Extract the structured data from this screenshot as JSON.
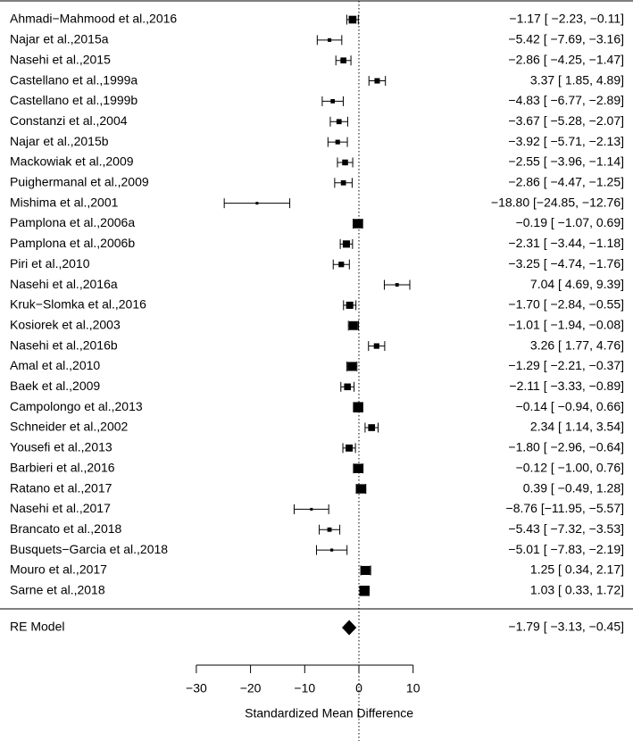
{
  "chart_data": {
    "type": "forest",
    "xlabel": "Standardized Mean Difference",
    "xlim": [
      -30,
      10
    ],
    "xticks": [
      -30,
      -20,
      -10,
      0,
      10
    ],
    "xtick_labels": [
      "−30",
      "−20",
      "−10",
      "0",
      "10"
    ],
    "reference_line": 0,
    "studies": [
      {
        "name": "Ahmadi−Mahmood et al.,2016",
        "est": -1.17,
        "lo": -2.23,
        "hi": -0.11,
        "text": "−1.17 [ −2.23,  −0.11]"
      },
      {
        "name": "Najar et al.,2015a",
        "est": -5.42,
        "lo": -7.69,
        "hi": -3.16,
        "text": "−5.42 [ −7.69,  −3.16]"
      },
      {
        "name": "Nasehi et al.,2015",
        "est": -2.86,
        "lo": -4.25,
        "hi": -1.47,
        "text": "−2.86 [ −4.25,  −1.47]"
      },
      {
        "name": "Castellano et al.,1999a",
        "est": 3.37,
        "lo": 1.85,
        "hi": 4.89,
        "text": "3.37 [  1.85,   4.89]"
      },
      {
        "name": "Castellano et al.,1999b",
        "est": -4.83,
        "lo": -6.77,
        "hi": -2.89,
        "text": "−4.83 [ −6.77,  −2.89]"
      },
      {
        "name": "Constanzi et al.,2004",
        "est": -3.67,
        "lo": -5.28,
        "hi": -2.07,
        "text": "−3.67 [ −5.28,  −2.07]"
      },
      {
        "name": "Najar et al.,2015b",
        "est": -3.92,
        "lo": -5.71,
        "hi": -2.13,
        "text": "−3.92 [ −5.71,  −2.13]"
      },
      {
        "name": "Mackowiak et al.,2009",
        "est": -2.55,
        "lo": -3.96,
        "hi": -1.14,
        "text": "−2.55 [ −3.96,  −1.14]"
      },
      {
        "name": "Puighermanal et al.,2009",
        "est": -2.86,
        "lo": -4.47,
        "hi": -1.25,
        "text": "−2.86 [ −4.47,  −1.25]"
      },
      {
        "name": "Mishima et al.,2001",
        "est": -18.8,
        "lo": -24.85,
        "hi": -12.76,
        "text": "−18.80 [−24.85, −12.76]"
      },
      {
        "name": "Pamplona et al.,2006a",
        "est": -0.19,
        "lo": -1.07,
        "hi": 0.69,
        "text": "−0.19 [ −1.07,   0.69]"
      },
      {
        "name": "Pamplona et al.,2006b",
        "est": -2.31,
        "lo": -3.44,
        "hi": -1.18,
        "text": "−2.31 [ −3.44,  −1.18]"
      },
      {
        "name": "Piri et al.,2010",
        "est": -3.25,
        "lo": -4.74,
        "hi": -1.76,
        "text": "−3.25 [ −4.74,  −1.76]"
      },
      {
        "name": "Nasehi et al.,2016a",
        "est": 7.04,
        "lo": 4.69,
        "hi": 9.39,
        "text": "7.04 [  4.69,   9.39]"
      },
      {
        "name": "Kruk−Slomka et al.,2016",
        "est": -1.7,
        "lo": -2.84,
        "hi": -0.55,
        "text": "−1.70 [ −2.84,  −0.55]"
      },
      {
        "name": "Kosiorek et al.,2003",
        "est": -1.01,
        "lo": -1.94,
        "hi": -0.08,
        "text": "−1.01 [ −1.94,  −0.08]"
      },
      {
        "name": "Nasehi et al.,2016b",
        "est": 3.26,
        "lo": 1.77,
        "hi": 4.76,
        "text": "3.26 [  1.77,   4.76]"
      },
      {
        "name": "Amal et al.,2010",
        "est": -1.29,
        "lo": -2.21,
        "hi": -0.37,
        "text": "−1.29 [ −2.21,  −0.37]"
      },
      {
        "name": "Baek et al.,2009",
        "est": -2.11,
        "lo": -3.33,
        "hi": -0.89,
        "text": "−2.11 [ −3.33,  −0.89]"
      },
      {
        "name": "Campolongo et al.,2013",
        "est": -0.14,
        "lo": -0.94,
        "hi": 0.66,
        "text": "−0.14 [ −0.94,   0.66]"
      },
      {
        "name": "Schneider et al.,2002",
        "est": 2.34,
        "lo": 1.14,
        "hi": 3.54,
        "text": "2.34 [  1.14,   3.54]"
      },
      {
        "name": "Yousefi et al.,2013",
        "est": -1.8,
        "lo": -2.96,
        "hi": -0.64,
        "text": "−1.80 [ −2.96,  −0.64]"
      },
      {
        "name": "Barbieri et al.,2016",
        "est": -0.12,
        "lo": -1.0,
        "hi": 0.76,
        "text": "−0.12 [ −1.00,   0.76]"
      },
      {
        "name": "Ratano et al.,2017",
        "est": 0.39,
        "lo": -0.49,
        "hi": 1.28,
        "text": "0.39 [ −0.49,   1.28]"
      },
      {
        "name": "Nasehi et al.,2017",
        "est": -8.76,
        "lo": -11.95,
        "hi": -5.57,
        "text": "−8.76 [−11.95,  −5.57]"
      },
      {
        "name": "Brancato et al.,2018",
        "est": -5.43,
        "lo": -7.32,
        "hi": -3.53,
        "text": "−5.43 [ −7.32,  −3.53]"
      },
      {
        "name": "Busquets−Garcia et al.,2018",
        "est": -5.01,
        "lo": -7.83,
        "hi": -2.19,
        "text": "−5.01 [ −7.83,  −2.19]"
      },
      {
        "name": "Mouro et al.,2017",
        "est": 1.25,
        "lo": 0.34,
        "hi": 2.17,
        "text": "1.25 [  0.34,   2.17]"
      },
      {
        "name": "Sarne et al.,2018",
        "est": 1.03,
        "lo": 0.33,
        "hi": 1.72,
        "text": "1.03 [  0.33,   1.72]"
      }
    ],
    "summary": {
      "name": "RE Model",
      "est": -1.79,
      "lo": -3.13,
      "hi": -0.45,
      "text": "−1.79 [ −3.13,  −0.45]"
    }
  }
}
